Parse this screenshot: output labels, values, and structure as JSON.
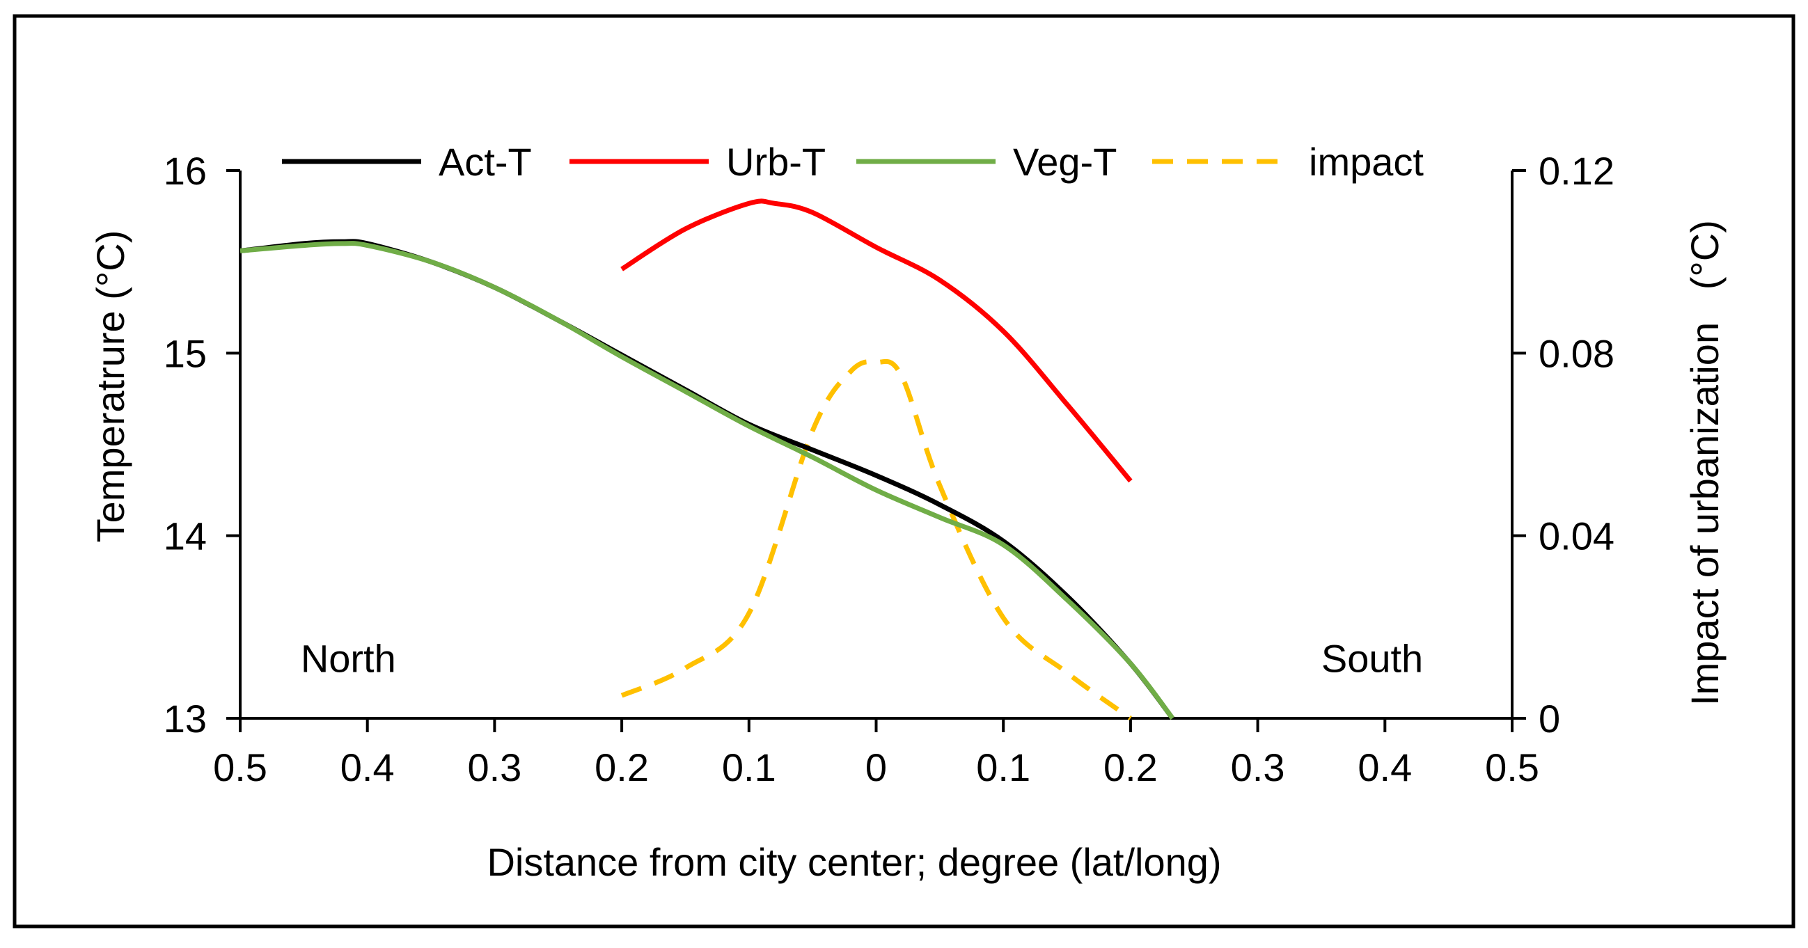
{
  "chart_data": {
    "type": "line",
    "xlabel": "Distance from city center; degree (lat/long)",
    "ylabel_left": "Temperatrure (°C)",
    "ylabel_right": "Impact of urbanization   (°C)",
    "x_range": [
      -0.5,
      0.5
    ],
    "x_tick_values": [
      -0.5,
      -0.4,
      -0.3,
      -0.2,
      -0.1,
      0,
      0.1,
      0.2,
      0.3,
      0.4,
      0.5
    ],
    "x_tick_labels": [
      "0.5",
      "0.4",
      "0.3",
      "0.2",
      "0.1",
      "0",
      "0.1",
      "0.2",
      "0.3",
      "0.4",
      "0.5"
    ],
    "ylim_left": [
      13,
      16
    ],
    "y_ticks_left": [
      "13",
      "14",
      "15",
      "16"
    ],
    "ylim_right": [
      0,
      0.12
    ],
    "y_ticks_right": [
      "0",
      "0.04",
      "0.08",
      "0.12"
    ],
    "legend_position": "top",
    "annotations": [
      {
        "text": "North",
        "x": -0.415,
        "y": 13.33
      },
      {
        "text": "South",
        "x": 0.39,
        "y": 13.33
      }
    ],
    "series": [
      {
        "name": "Act-T",
        "axis": "left",
        "color": "#000000",
        "dash": false,
        "x": [
          -0.5,
          -0.45,
          -0.42,
          -0.4,
          -0.35,
          -0.3,
          -0.25,
          -0.2,
          -0.15,
          -0.1,
          -0.05,
          0,
          0.05,
          0.1,
          0.15,
          0.2,
          0.233
        ],
        "y": [
          15.56,
          15.6,
          15.61,
          15.6,
          15.5,
          15.36,
          15.18,
          14.99,
          14.8,
          14.61,
          14.47,
          14.33,
          14.17,
          13.97,
          13.67,
          13.3,
          13.0
        ]
      },
      {
        "name": "Urb-T",
        "axis": "left",
        "color": "#ff0000",
        "dash": false,
        "x": [
          -0.2,
          -0.15,
          -0.1,
          -0.08,
          -0.05,
          0,
          0.05,
          0.1,
          0.15,
          0.2
        ],
        "y": [
          15.46,
          15.68,
          15.82,
          15.82,
          15.77,
          15.58,
          15.4,
          15.12,
          14.72,
          14.3
        ]
      },
      {
        "name": "Veg-T",
        "axis": "left",
        "color": "#70ad47",
        "dash": false,
        "x": [
          -0.5,
          -0.45,
          -0.42,
          -0.4,
          -0.35,
          -0.3,
          -0.25,
          -0.2,
          -0.15,
          -0.1,
          -0.05,
          0,
          0.05,
          0.1,
          0.15,
          0.2,
          0.233
        ],
        "y": [
          15.56,
          15.59,
          15.6,
          15.59,
          15.5,
          15.36,
          15.18,
          14.98,
          14.79,
          14.6,
          14.43,
          14.25,
          14.1,
          13.95,
          13.65,
          13.3,
          13.0
        ]
      },
      {
        "name": "impact",
        "axis": "right",
        "color": "#ffc000",
        "dash": true,
        "x": [
          -0.2,
          -0.15,
          -0.1,
          -0.05,
          -0.02,
          0,
          0.02,
          0.05,
          0.1,
          0.15,
          0.2
        ],
        "y": [
          0.005,
          0.011,
          0.023,
          0.063,
          0.076,
          0.078,
          0.075,
          0.051,
          0.022,
          0.01,
          0.0
        ]
      }
    ]
  }
}
